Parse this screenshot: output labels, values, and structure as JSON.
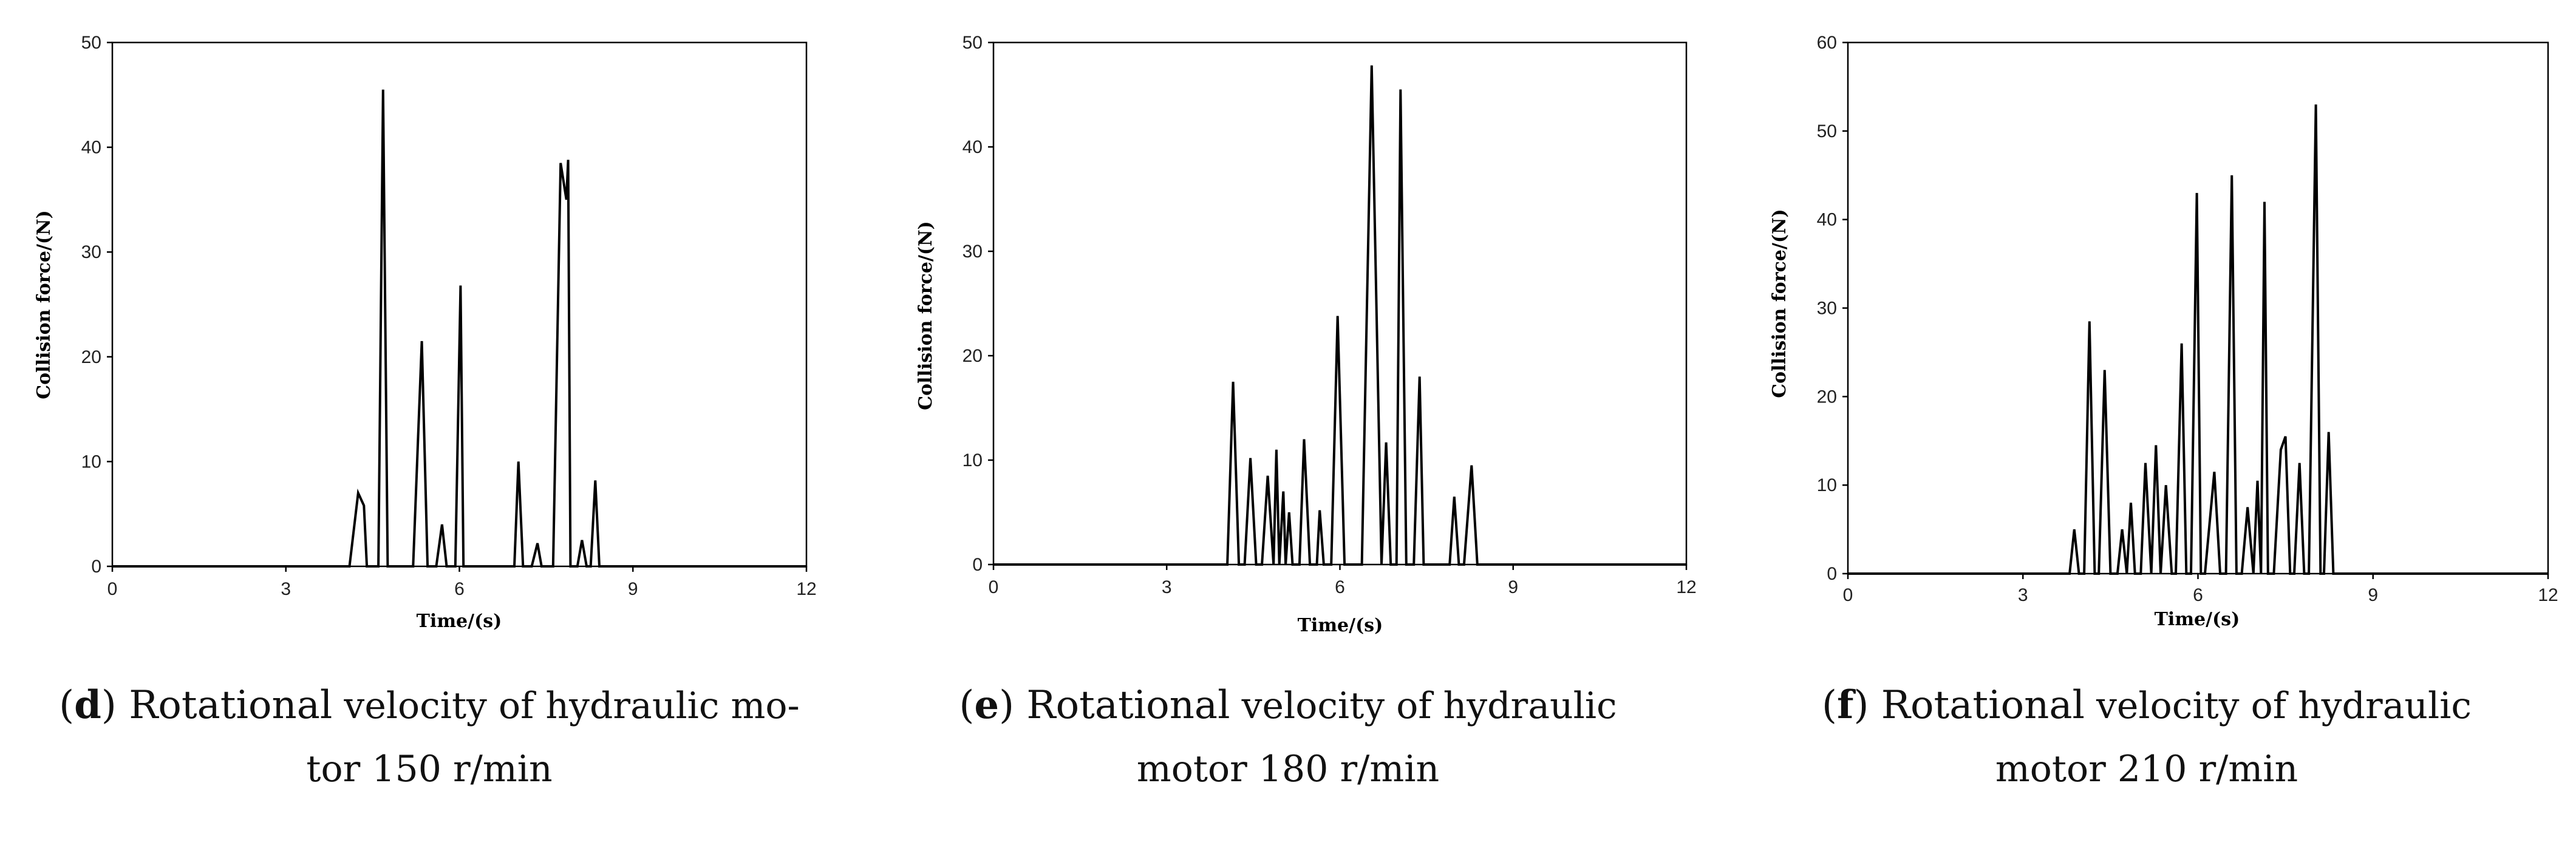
{
  "chart_data": [
    {
      "type": "line",
      "panel_letter": "d",
      "caption_lead": "Rotational",
      "caption_rest_1": " velocity of hydraulic mo-",
      "caption_line2": "tor 150 r/min",
      "xlabel": "Time/(s)",
      "ylabel": "Collision force/(N)",
      "xlim": [
        0,
        12
      ],
      "ylim": [
        0,
        50
      ],
      "xticks": [
        0,
        3,
        6,
        9,
        12
      ],
      "yticks": [
        0,
        10,
        20,
        30,
        40,
        50
      ],
      "grid": false,
      "series": [
        {
          "x": [
            0,
            4.1,
            4.25,
            4.35,
            4.4,
            4.6,
            4.68,
            4.76,
            5.2,
            5.35,
            5.45,
            5.6,
            5.7,
            5.78,
            5.93,
            6.02,
            6.07,
            6.95,
            7.02,
            7.1,
            7.25,
            7.35,
            7.42,
            7.62,
            7.75,
            7.85,
            7.88,
            7.92,
            8.04,
            8.12,
            8.2,
            8.27,
            8.35,
            8.42,
            12
          ],
          "y": [
            0,
            0,
            7,
            5.8,
            0,
            0,
            45.5,
            0,
            0,
            21.5,
            0,
            0,
            4,
            0,
            0,
            26.8,
            0,
            0,
            10,
            0,
            0,
            2.2,
            0,
            0,
            38.5,
            35,
            38.8,
            0,
            0,
            2.5,
            0,
            0,
            8.2,
            0,
            0
          ]
        }
      ]
    },
    {
      "type": "line",
      "panel_letter": "e",
      "caption_lead": "Rotational",
      "caption_rest_1": " velocity of hydraulic",
      "caption_line2": "motor 180 r/min",
      "xlabel": "Time/(s)",
      "ylabel": "Collision force/(N)",
      "xlim": [
        0,
        12
      ],
      "ylim": [
        0,
        50
      ],
      "xticks": [
        0,
        3,
        6,
        9,
        12
      ],
      "yticks": [
        0,
        10,
        20,
        30,
        40,
        50
      ],
      "grid": false,
      "series": [
        {
          "x": [
            0,
            4.05,
            4.15,
            4.25,
            4.35,
            4.45,
            4.55,
            4.65,
            4.75,
            4.85,
            4.9,
            4.95,
            5.02,
            5.06,
            5.12,
            5.18,
            5.3,
            5.38,
            5.48,
            5.6,
            5.65,
            5.72,
            5.85,
            5.96,
            6.08,
            6.38,
            6.55,
            6.72,
            6.8,
            6.88,
            6.98,
            7.05,
            7.15,
            7.28,
            7.38,
            7.45,
            7.55,
            7.9,
            7.98,
            8.06,
            8.15,
            8.28,
            8.38,
            12
          ],
          "y": [
            0,
            0,
            17.5,
            0,
            0,
            10.2,
            0,
            0,
            8.5,
            0,
            11,
            0,
            7,
            0,
            5,
            0,
            0,
            12,
            0,
            0,
            5.2,
            0,
            0,
            23.8,
            0,
            0,
            47.8,
            0,
            11.7,
            0,
            0,
            45.5,
            0,
            0,
            18,
            0,
            0,
            0,
            6.5,
            0,
            0,
            9.5,
            0,
            0
          ]
        }
      ]
    },
    {
      "type": "line",
      "panel_letter": "f",
      "caption_lead": "Rotational",
      "caption_rest_1": " velocity of hydraulic",
      "caption_line2": "motor 210 r/min",
      "xlabel": "Time/(s)",
      "ylabel": "Collision force/(N)",
      "xlim": [
        0,
        12
      ],
      "ylim": [
        0,
        60
      ],
      "xticks": [
        0,
        3,
        6,
        9,
        12
      ],
      "yticks": [
        0,
        10,
        20,
        30,
        40,
        50,
        60
      ],
      "grid": false,
      "series": [
        {
          "x": [
            0,
            3.8,
            3.88,
            3.96,
            4.05,
            4.14,
            4.23,
            4.3,
            4.4,
            4.5,
            4.62,
            4.7,
            4.78,
            4.85,
            4.92,
            5.02,
            5.1,
            5.2,
            5.28,
            5.36,
            5.45,
            5.55,
            5.62,
            5.72,
            5.8,
            5.88,
            5.98,
            6.05,
            6.12,
            6.28,
            6.38,
            6.48,
            6.58,
            6.66,
            6.75,
            6.85,
            6.95,
            7.02,
            7.08,
            7.14,
            7.2,
            7.3,
            7.42,
            7.5,
            7.58,
            7.65,
            7.74,
            7.82,
            7.9,
            8.02,
            8.1,
            8.16,
            8.24,
            8.32,
            12
          ],
          "y": [
            0,
            0,
            5,
            0,
            0,
            28.5,
            0,
            0,
            23,
            0,
            0,
            5,
            0,
            8,
            0,
            0,
            12.5,
            0,
            14.5,
            0,
            10,
            0,
            0,
            26,
            0,
            0,
            43,
            0,
            0,
            11.5,
            0,
            0,
            45,
            0,
            0,
            7.5,
            0,
            10.5,
            0,
            42,
            0,
            0,
            14,
            15.5,
            0,
            0,
            12.5,
            0,
            0,
            53,
            0,
            0,
            16,
            0,
            0
          ]
        }
      ]
    }
  ]
}
